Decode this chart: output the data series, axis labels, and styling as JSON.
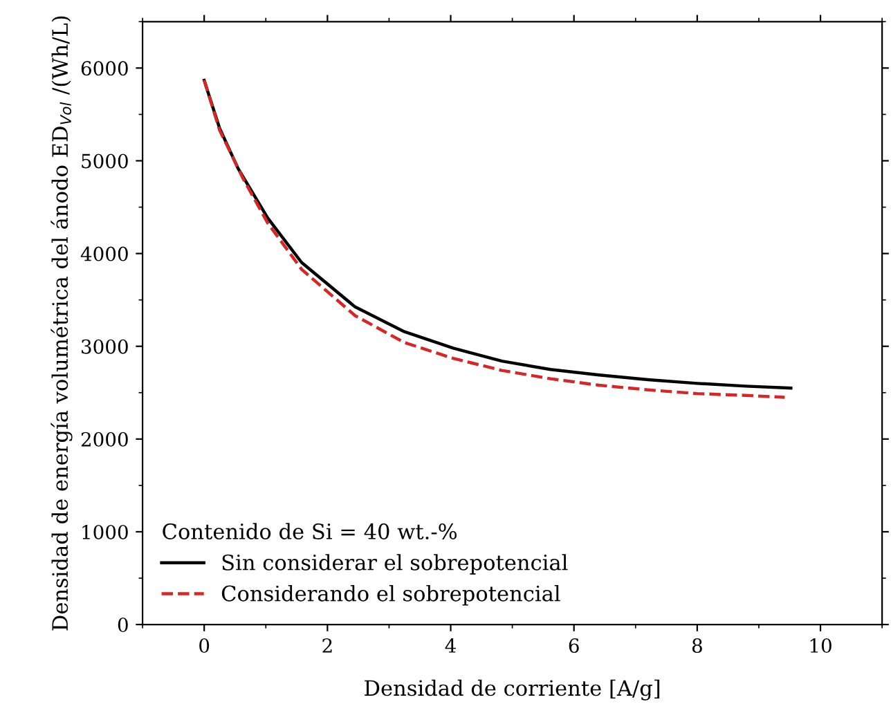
{
  "chart_data": {
    "type": "line",
    "xlabel": "Densidad de corriente [A/g]",
    "ylabel": "Densidad de energía volumétrica del ánodo ED$_{Vol}$ /(Wh/L)",
    "legend_title": "Contenido de Si = 40 wt.-%",
    "legend": "bottom left",
    "grid": false,
    "xlim": [
      -1,
      11
    ],
    "xticks": [
      0,
      2,
      4,
      6,
      8,
      10
    ],
    "ylim": [
      0,
      6500
    ],
    "yticks": [
      0,
      1000,
      2000,
      3000,
      4000,
      5000,
      6000
    ],
    "series": [
      {
        "name": "Sin considerar el sobrepotencial",
        "color": "#000000",
        "line_style": "solid",
        "x": [
          0,
          0.25,
          0.55,
          1.03,
          1.58,
          2.45,
          3.25,
          4.04,
          4.83,
          5.62,
          6.41,
          7.2,
          8.0,
          8.79,
          9.52
        ],
        "values": [
          5867,
          5350,
          4917,
          4384,
          3904,
          3424,
          3157,
          2980,
          2840,
          2750,
          2690,
          2640,
          2600,
          2570,
          2550
        ]
      },
      {
        "name": "Considerando el sobrepotencial",
        "color": "#d62728",
        "line_style": "dashed",
        "x": [
          0,
          0.25,
          0.63,
          1.03,
          1.58,
          2.45,
          3.25,
          4.04,
          4.83,
          5.62,
          6.41,
          7.2,
          8.0,
          8.79,
          9.42
        ],
        "values": [
          5870,
          5330,
          4810,
          4330,
          3830,
          3330,
          3040,
          2870,
          2740,
          2650,
          2580,
          2530,
          2490,
          2470,
          2450
        ]
      }
    ]
  }
}
